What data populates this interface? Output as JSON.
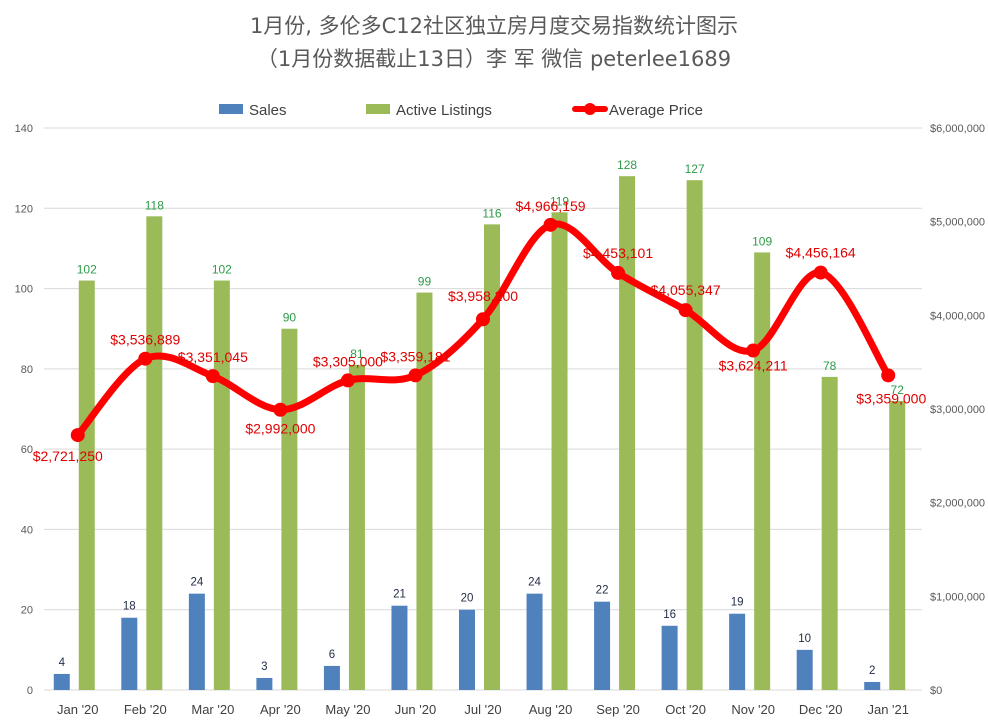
{
  "chart_data": {
    "type": "bar",
    "title": "1月份, 多伦多C12社区独立房月度交易指数统计图示",
    "subtitle": "（1月份数据截止13日）李 军  微信  peterlee1689",
    "categories": [
      "Jan '20",
      "Feb '20",
      "Mar '20",
      "Apr '20",
      "May '20",
      "Jun '20",
      "Jul '20",
      "Aug '20",
      "Sep '20",
      "Oct '20",
      "Nov '20",
      "Dec '20",
      "Jan '21"
    ],
    "series": [
      {
        "name": "Sales",
        "type": "bar",
        "axis": "left",
        "color": "#4f81bd",
        "values": [
          4,
          18,
          24,
          3,
          6,
          21,
          20,
          24,
          22,
          16,
          19,
          10,
          2
        ]
      },
      {
        "name": "Active Listings",
        "type": "bar",
        "axis": "left",
        "color": "#9bbb59",
        "values": [
          102,
          118,
          102,
          90,
          81,
          99,
          116,
          119,
          128,
          127,
          109,
          78,
          72
        ]
      },
      {
        "name": "Average Price",
        "type": "line",
        "axis": "right",
        "color": "#ff0000",
        "smooth": true,
        "values": [
          2721250,
          3536889,
          3351045,
          2992000,
          3305000,
          3359181,
          3958200,
          4966159,
          4453101,
          4055347,
          3624211,
          4456164,
          3359000
        ],
        "labels": [
          "$2,721,250",
          "$3,536,889",
          "$3,351,045",
          "$2,992,000",
          "$3,305,000",
          "$3,359,181",
          "$3,958,200",
          "$4,966,159",
          "$4,453,101",
          "$4,055,347",
          "$3,624,211",
          "$4,456,164",
          "$3,359,000"
        ]
      }
    ],
    "ylim_left": [
      0,
      140
    ],
    "yticks_left": [
      0,
      20,
      40,
      60,
      80,
      100,
      120,
      140
    ],
    "ylim_right": [
      0,
      6000000
    ],
    "yticks_right_labels": [
      "$0",
      "$1,000,000",
      "$2,000,000",
      "$3,000,000",
      "$4,000,000",
      "$5,000,000",
      "$6,000,000"
    ],
    "grid": true,
    "legend_position": "top"
  }
}
